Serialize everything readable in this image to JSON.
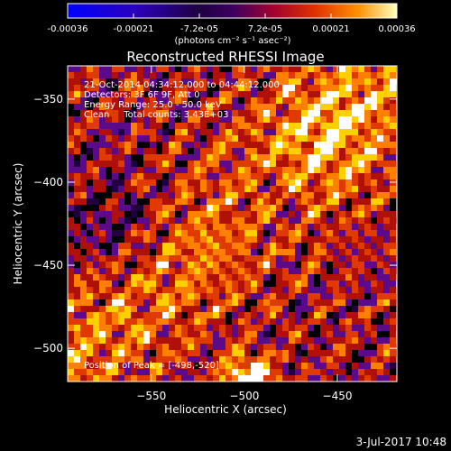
{
  "chart_data": {
    "type": "heatmap",
    "title": "Reconstructed RHESSI Image",
    "xlabel": "Heliocentric X (arcsec)",
    "ylabel": "Heliocentric Y (arcsec)",
    "xlim": [
      -595,
      -418
    ],
    "ylim": [
      -520,
      -330
    ],
    "x_ticks": [
      -550,
      -500,
      -450
    ],
    "y_ticks": [
      -350,
      -400,
      -450,
      -500
    ],
    "colorbar": {
      "ticks": [
        "-0.00036",
        "-0.00021",
        "-7.2e-05",
        "7.2e-05",
        "0.00021",
        "0.00036"
      ],
      "unit_label": "(photons cm⁻² s⁻¹ asec⁻²)",
      "range": [
        -0.00036,
        0.00036
      ]
    },
    "annotations": [
      "21-Oct-2014 04:34:12.000 to 04:44:12.000",
      "Detectors: 3F 6F 9F, Att 0",
      "Energy Range: 25.0 - 50.0 keV",
      "Clean     Total counts: 3.43E+03"
    ],
    "peak_label": "Position of Peak = [-498,-520]",
    "peak": {
      "x": -498,
      "y": -520
    },
    "colormap": [
      "#0000ff",
      "#4000a0",
      "#200040",
      "#000000",
      "#5a0a8a",
      "#b0100a",
      "#e03a00",
      "#ff8000",
      "#ffd000",
      "#ffffff"
    ]
  },
  "footer": {
    "date": "3-Jul-2017 10:48"
  }
}
